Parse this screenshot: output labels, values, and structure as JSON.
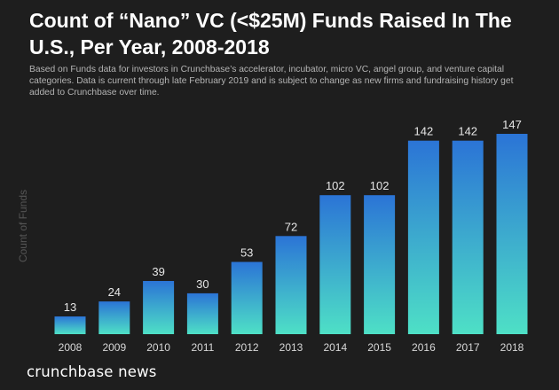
{
  "title": "Count of “Nano” VC (<$25M) Funds Raised In The U.S., Per Year, 2008-2018",
  "subtitle": "Based on Funds data for investors in Crunchbase’s accelerator, incubator, micro VC, angel group, and venture capital categories. Data is current through late February 2019 and is subject to change as new firms and fundraising history get added to Crunchbase over time.",
  "footer": "crunchbase news",
  "colors": {
    "background": "#1e1e1e",
    "bar_top": "#2b74d6",
    "bar_bottom": "#4ee0c6",
    "label": "#e6e6e6",
    "axis_label": "#555555"
  },
  "chart_data": {
    "type": "bar",
    "title": "Count of “Nano” VC (<$25M) Funds Raised In The U.S., Per Year, 2008-2018",
    "xlabel": "",
    "ylabel": "Count of Funds",
    "categories": [
      "2008",
      "2009",
      "2010",
      "2011",
      "2012",
      "2013",
      "2014",
      "2015",
      "2016",
      "2017",
      "2018"
    ],
    "values": [
      13,
      24,
      39,
      30,
      53,
      72,
      102,
      102,
      142,
      142,
      147
    ],
    "ylim": [
      0,
      147
    ],
    "grid": false,
    "legend": "none",
    "data_labels": true
  }
}
